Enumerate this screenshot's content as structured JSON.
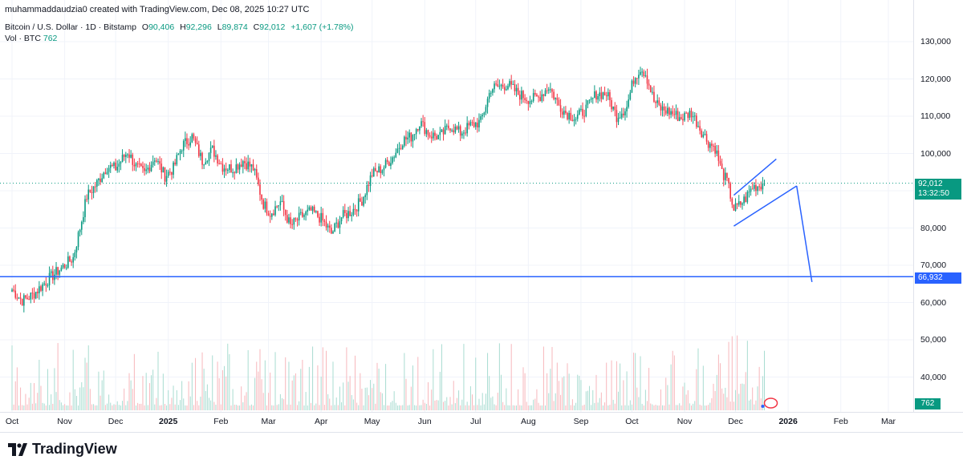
{
  "header": {
    "author": "muhammaddaudzia0 created with TradingView.com, Dec 08, 2025 10:27 UTC",
    "symbol": "Bitcoin / U.S. Dollar · 1D · Bitstamp",
    "open_label": "O",
    "open": "90,406",
    "high_label": "H",
    "high": "92,296",
    "low_label": "L",
    "low": "89,874",
    "close_label": "C",
    "close": "92,012",
    "change": "+1,607 (+1.78%)",
    "vol_label": "Vol · BTC",
    "vol_value": "762"
  },
  "tags": {
    "last_price": "92,012",
    "countdown": "13:32:50",
    "level": "66,932",
    "volume": "762"
  },
  "footer": {
    "brand": "TradingView"
  },
  "colors": {
    "up": "#089981",
    "down": "#f23645",
    "drawing": "#2962ff",
    "vol_up": "#a8dcd1",
    "vol_down": "#f7b7bc"
  },
  "chart_data": {
    "type": "candlestick",
    "symbol": "BTCUSD",
    "interval": "1D",
    "y_ticks": [
      130000,
      120000,
      110000,
      100000,
      90000,
      80000,
      70000,
      60000,
      50000,
      40000
    ],
    "y_tick_labels": [
      "130,000",
      "120,000",
      "110,000",
      "100,000",
      "90,000",
      "80,000",
      "70,000",
      "60,000",
      "50,000",
      "40,000"
    ],
    "x_ticks": [
      {
        "label": "Oct",
        "bold": false
      },
      {
        "label": "Nov",
        "bold": false
      },
      {
        "label": "Dec",
        "bold": false
      },
      {
        "label": "2025",
        "bold": true
      },
      {
        "label": "Feb",
        "bold": false
      },
      {
        "label": "Mar",
        "bold": false
      },
      {
        "label": "Apr",
        "bold": false
      },
      {
        "label": "May",
        "bold": false
      },
      {
        "label": "Jun",
        "bold": false
      },
      {
        "label": "Jul",
        "bold": false
      },
      {
        "label": "Aug",
        "bold": false
      },
      {
        "label": "Sep",
        "bold": false
      },
      {
        "label": "Oct",
        "bold": false
      },
      {
        "label": "Nov",
        "bold": false
      },
      {
        "label": "Dec",
        "bold": false
      },
      {
        "label": "2026",
        "bold": true
      },
      {
        "label": "Feb",
        "bold": false
      },
      {
        "label": "Mar",
        "bold": false
      }
    ],
    "x_tick_day_index": [
      0,
      31,
      61,
      92,
      123,
      151,
      182,
      212,
      243,
      273,
      304,
      335,
      365,
      396,
      426,
      457,
      488,
      516
    ],
    "price_path_keypoints": [
      [
        0,
        63500
      ],
      [
        6,
        60500
      ],
      [
        12,
        62000
      ],
      [
        22,
        66500
      ],
      [
        31,
        70000
      ],
      [
        36,
        72000
      ],
      [
        40,
        80000
      ],
      [
        44,
        88500
      ],
      [
        50,
        92000
      ],
      [
        56,
        96500
      ],
      [
        61,
        96000
      ],
      [
        68,
        100500
      ],
      [
        73,
        96500
      ],
      [
        78,
        94500
      ],
      [
        84,
        99000
      ],
      [
        90,
        94000
      ],
      [
        95,
        96000
      ],
      [
        100,
        102000
      ],
      [
        106,
        104500
      ],
      [
        112,
        98000
      ],
      [
        118,
        101000
      ],
      [
        124,
        96500
      ],
      [
        130,
        96000
      ],
      [
        136,
        98000
      ],
      [
        142,
        96000
      ],
      [
        148,
        86500
      ],
      [
        152,
        84000
      ],
      [
        158,
        87000
      ],
      [
        164,
        80500
      ],
      [
        170,
        83000
      ],
      [
        176,
        84500
      ],
      [
        182,
        82500
      ],
      [
        188,
        78500
      ],
      [
        194,
        83000
      ],
      [
        200,
        84500
      ],
      [
        206,
        87500
      ],
      [
        212,
        94500
      ],
      [
        218,
        96000
      ],
      [
        224,
        99000
      ],
      [
        230,
        103500
      ],
      [
        235,
        104500
      ],
      [
        240,
        108500
      ],
      [
        246,
        105000
      ],
      [
        252,
        104500
      ],
      [
        258,
        107500
      ],
      [
        264,
        105500
      ],
      [
        270,
        107500
      ],
      [
        276,
        108500
      ],
      [
        282,
        117500
      ],
      [
        287,
        118000
      ],
      [
        292,
        118500
      ],
      [
        298,
        116000
      ],
      [
        305,
        114500
      ],
      [
        310,
        115000
      ],
      [
        316,
        118000
      ],
      [
        322,
        113000
      ],
      [
        326,
        111000
      ],
      [
        332,
        109500
      ],
      [
        338,
        112000
      ],
      [
        344,
        116000
      ],
      [
        350,
        116000
      ],
      [
        356,
        110000
      ],
      [
        362,
        112500
      ],
      [
        366,
        120000
      ],
      [
        370,
        123000
      ],
      [
        373,
        121500
      ],
      [
        378,
        114000
      ],
      [
        382,
        112000
      ],
      [
        388,
        111000
      ],
      [
        394,
        109500
      ],
      [
        400,
        111000
      ],
      [
        406,
        106000
      ],
      [
        410,
        103000
      ],
      [
        414,
        101500
      ],
      [
        418,
        95000
      ],
      [
        421,
        92500
      ],
      [
        425,
        85000
      ],
      [
        428,
        86000
      ],
      [
        432,
        88000
      ],
      [
        436,
        91000
      ],
      [
        440,
        91500
      ],
      [
        443,
        92012
      ]
    ],
    "annotations": {
      "horizontal_level": 66932,
      "rising_wedge_upper": [
        [
          425,
          88800
        ],
        [
          450,
          98500
        ]
      ],
      "rising_wedge_lower": [
        [
          425,
          80500
        ],
        [
          462,
          91300
        ]
      ],
      "projected_path": [
        [
          462,
          91300
        ],
        [
          471,
          65500
        ]
      ]
    }
  }
}
